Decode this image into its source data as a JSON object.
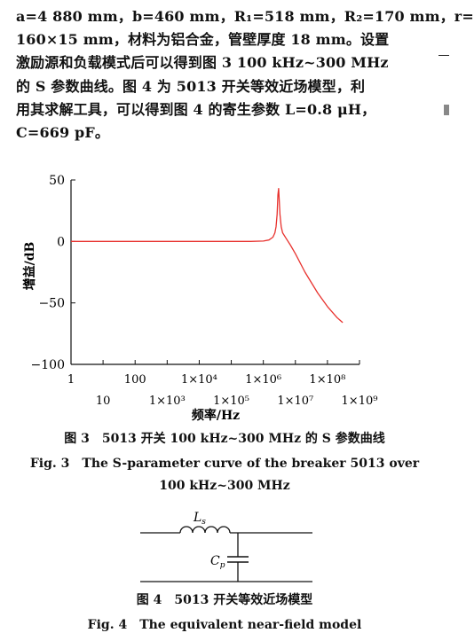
{
  "paragraph": {
    "lines": [
      "a=4 880 mm，b=460 mm，R₁=518 mm，R₂=170 mm，r=",
      "160×15 mm，材料为铝合金，管壁厚度 18 mm。设置",
      "激励源和负载模式后可以得到图 3 100 kHz~300 MHz",
      "的 S 参数曲线。图 4 为 5013 开关等效近场模型，利",
      "用其求解工具，可以得到图 4 的寄生参数 L=0.8 μH，",
      "C=669 pF。"
    ]
  },
  "figure3": {
    "caption_cn": "图 3　5013 开关 100 kHz~300 MHz 的 S 参数曲线",
    "caption_en_line1": "Fig. 3　The S-parameter curve of the breaker 5013 over",
    "caption_en_line2": "100 kHz~300 MHz",
    "chart_data": {
      "type": "line",
      "title": "",
      "xlabel": "频率/Hz",
      "ylabel": "增益/dB",
      "x_scale": "log",
      "xlim": [
        1,
        1000000000
      ],
      "ylim": [
        -100,
        50
      ],
      "yticks": [
        50,
        0,
        -50,
        -100
      ],
      "ytick_labels": [
        "50",
        "0",
        "−50",
        "−100"
      ],
      "xtick_row1": [
        {
          "value": 1,
          "label": "1"
        },
        {
          "value": 100,
          "label": "100"
        },
        {
          "value": 10000,
          "label": "1×10⁴"
        },
        {
          "value": 1000000,
          "label": "1×10⁶"
        },
        {
          "value": 100000000,
          "label": "1×10⁸"
        }
      ],
      "xtick_row2": [
        {
          "value": 10,
          "label": "10"
        },
        {
          "value": 1000,
          "label": "1×10³"
        },
        {
          "value": 100000,
          "label": "1×10⁵"
        },
        {
          "value": 10000000,
          "label": "1×10⁷"
        },
        {
          "value": 1000000000,
          "label": "1×10⁹"
        }
      ],
      "grid": false,
      "line_color": "#e8322e",
      "series": [
        {
          "x": [
            1,
            10,
            100,
            1000,
            10000,
            100000,
            400000,
            1000000,
            1500000,
            2000000,
            2300000,
            2500000,
            2700000,
            2850000,
            3000000,
            3150000,
            3300000,
            3600000,
            4000000,
            5000000,
            7000000,
            10000000,
            20000000,
            50000000,
            100000000,
            200000000,
            300000000
          ],
          "y": [
            0,
            0,
            0,
            0,
            0,
            0,
            0,
            0.3,
            1.2,
            3.5,
            7,
            12,
            22,
            38,
            43,
            32,
            22,
            12,
            7,
            3,
            -3,
            -10,
            -25,
            -42,
            -53,
            -62,
            -66
          ]
        }
      ]
    }
  },
  "figure4": {
    "label_L": "L",
    "label_L_sub": "s",
    "label_C": "C",
    "label_C_sub": "p",
    "caption_cn": "图 4　5013 开关等效近场模型",
    "caption_en": "Fig. 4　The equivalent near-field model"
  }
}
